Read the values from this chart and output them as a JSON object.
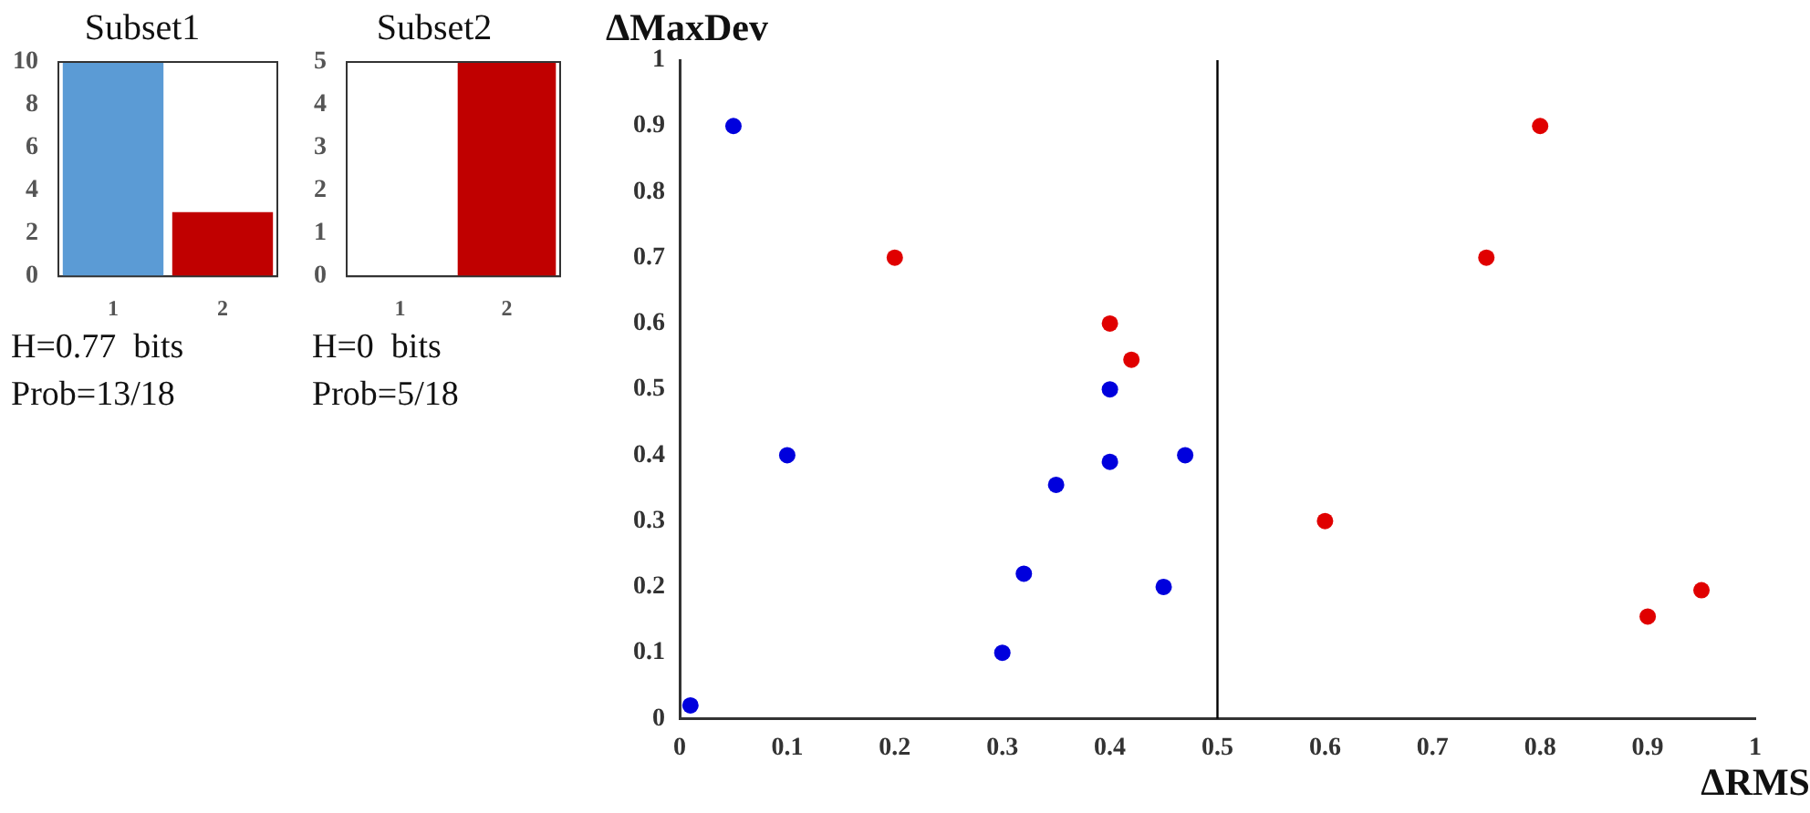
{
  "chart_data": [
    {
      "type": "bar",
      "title": "Subset1",
      "categories": [
        "1",
        "2"
      ],
      "values": [
        10,
        3
      ],
      "colors": [
        "#5b9bd5",
        "#c00000"
      ],
      "ylim": [
        0,
        10
      ],
      "yticks": [
        0,
        2,
        4,
        6,
        8,
        10
      ],
      "grid": false,
      "legend": false,
      "annotations": [
        "H=0.77  bits",
        "Prob=13/18"
      ]
    },
    {
      "type": "bar",
      "title": "Subset2",
      "categories": [
        "1",
        "2"
      ],
      "values": [
        0,
        5
      ],
      "colors": [
        "#5b9bd5",
        "#c00000"
      ],
      "ylim": [
        0,
        5
      ],
      "yticks": [
        0,
        1,
        2,
        3,
        4,
        5
      ],
      "grid": false,
      "legend": false,
      "annotations": [
        "H=0  bits",
        "Prob=5/18"
      ]
    },
    {
      "type": "scatter",
      "xlabel": "ΔRMS",
      "ylabel": "ΔMaxDev",
      "xlim": [
        0,
        1
      ],
      "ylim": [
        0,
        1
      ],
      "xticks": [
        0,
        0.1,
        0.2,
        0.3,
        0.4,
        0.5,
        0.6,
        0.7,
        0.8,
        0.9,
        1
      ],
      "yticks": [
        0,
        0.1,
        0.2,
        0.3,
        0.4,
        0.5,
        0.6,
        0.7,
        0.8,
        0.9,
        1
      ],
      "grid": false,
      "legend": false,
      "marker": "circle",
      "ref_lines": [
        {
          "axis": "x",
          "value": 0.5,
          "color": "#000000"
        }
      ],
      "series": [
        {
          "color": "#0000dd",
          "x": [
            0.01,
            0.05,
            0.1,
            0.3,
            0.32,
            0.35,
            0.4,
            0.4,
            0.45,
            0.47
          ],
          "values": [
            0.02,
            0.9,
            0.4,
            0.1,
            0.22,
            0.355,
            0.39,
            0.5,
            0.2,
            0.4
          ]
        },
        {
          "color": "#e00000",
          "x": [
            0.2,
            0.4,
            0.42,
            0.6,
            0.75,
            0.8,
            0.9,
            0.95
          ],
          "values": [
            0.7,
            0.6,
            0.545,
            0.3,
            0.7,
            0.9,
            0.155,
            0.195
          ]
        }
      ]
    }
  ]
}
